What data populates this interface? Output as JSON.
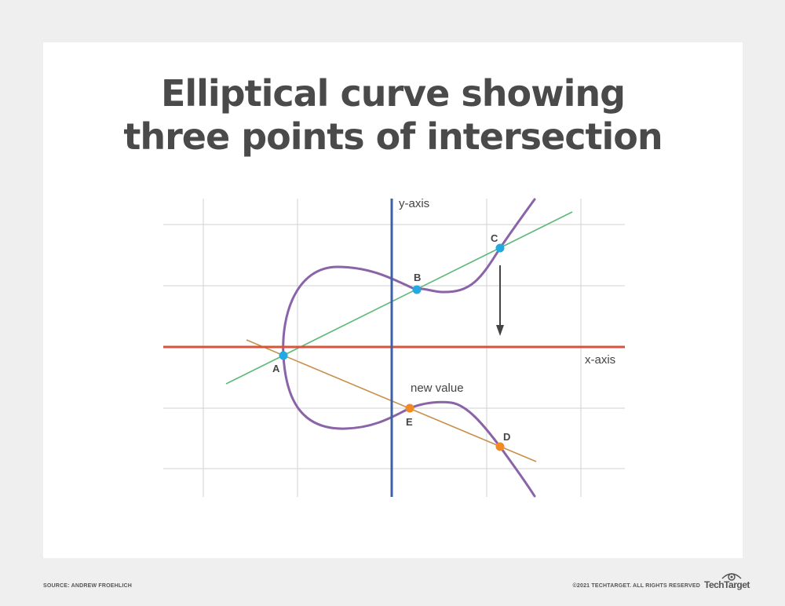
{
  "title": {
    "line1": "Elliptical curve showing",
    "line2": "three points of intersection"
  },
  "axes": {
    "y_label": "y-axis",
    "x_label": "x-axis"
  },
  "points": {
    "A": "A",
    "B": "B",
    "C": "C",
    "D": "D",
    "E": "E"
  },
  "annotation": {
    "new_value": "new value"
  },
  "colors": {
    "curve": "#8a63a8",
    "x_axis": "#d9533c",
    "y_axis": "#3f5fa8",
    "green_line": "#5fb97a",
    "orange_line": "#c98f4a",
    "blue_point": "#22a9e0",
    "orange_point": "#f08a24",
    "grid": "#cfcfcf",
    "arrow": "#444444"
  },
  "footer": {
    "source": "SOURCE: ANDREW FROEHLICH",
    "copyright": "©2021 TECHTARGET. ALL RIGHTS RESERVED",
    "brand": "TechTarget"
  }
}
